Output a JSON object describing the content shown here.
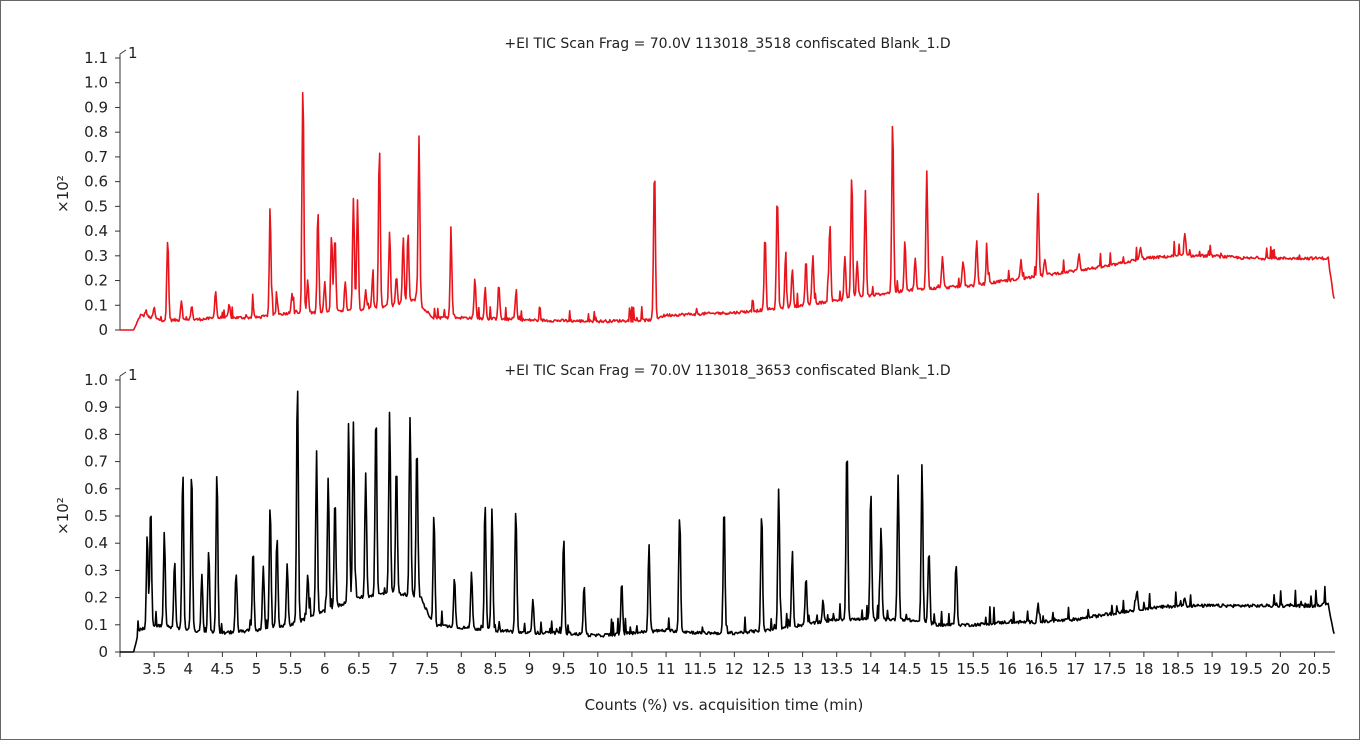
{
  "chart_data": [
    {
      "type": "line",
      "title": "+EI TIC Scan Frag = 70.0V 113018_3518 confiscated Blank_1.D",
      "ylabel": "×10²",
      "xlabel": "",
      "yaxis_top_label": "1",
      "ylim": [
        0,
        1.1
      ],
      "yticks": [
        "0",
        "0.1",
        "0.2",
        "0.3",
        "0.4",
        "0.5",
        "0.6",
        "0.7",
        "0.8",
        "0.9",
        "1.0",
        "1.1"
      ],
      "xlim": [
        3.0,
        20.8
      ],
      "color": "#e8141c",
      "baseline": [
        [
          3.0,
          0
        ],
        [
          3.2,
          0
        ],
        [
          3.3,
          0.06
        ],
        [
          3.6,
          0.04
        ],
        [
          4.0,
          0.04
        ],
        [
          4.5,
          0.05
        ],
        [
          5.0,
          0.05
        ],
        [
          5.5,
          0.07
        ],
        [
          6.0,
          0.07
        ],
        [
          6.5,
          0.08
        ],
        [
          7.0,
          0.1
        ],
        [
          7.3,
          0.12
        ],
        [
          7.6,
          0.05
        ],
        [
          8.0,
          0.05
        ],
        [
          9.0,
          0.04
        ],
        [
          10.0,
          0.035
        ],
        [
          10.75,
          0.04
        ],
        [
          11.0,
          0.06
        ],
        [
          12.0,
          0.07
        ],
        [
          12.4,
          0.08
        ],
        [
          13.0,
          0.1
        ],
        [
          13.5,
          0.12
        ],
        [
          14.0,
          0.14
        ],
        [
          14.5,
          0.16
        ],
        [
          15.0,
          0.17
        ],
        [
          15.5,
          0.18
        ],
        [
          16.0,
          0.2
        ],
        [
          16.5,
          0.22
        ],
        [
          17.0,
          0.24
        ],
        [
          17.5,
          0.26
        ],
        [
          18.0,
          0.29
        ],
        [
          18.5,
          0.3
        ],
        [
          19.0,
          0.3
        ],
        [
          19.5,
          0.29
        ],
        [
          20.0,
          0.29
        ],
        [
          20.5,
          0.29
        ],
        [
          20.7,
          0.29
        ],
        [
          20.78,
          0.13
        ]
      ],
      "peaks": [
        [
          3.38,
          0.08
        ],
        [
          3.5,
          0.09
        ],
        [
          3.7,
          0.37
        ],
        [
          3.9,
          0.12
        ],
        [
          4.05,
          0.1
        ],
        [
          4.4,
          0.16
        ],
        [
          4.6,
          0.1
        ],
        [
          4.95,
          0.09
        ],
        [
          5.2,
          0.47
        ],
        [
          5.3,
          0.12
        ],
        [
          5.52,
          0.15
        ],
        [
          5.68,
          1.0
        ],
        [
          5.75,
          0.2
        ],
        [
          5.9,
          0.49
        ],
        [
          6.0,
          0.2
        ],
        [
          6.1,
          0.39
        ],
        [
          6.15,
          0.39
        ],
        [
          6.3,
          0.2
        ],
        [
          6.42,
          0.53
        ],
        [
          6.48,
          0.52
        ],
        [
          6.6,
          0.16
        ],
        [
          6.7,
          0.2
        ],
        [
          6.8,
          0.74
        ],
        [
          6.95,
          0.4
        ],
        [
          7.05,
          0.22
        ],
        [
          7.15,
          0.38
        ],
        [
          7.22,
          0.4
        ],
        [
          7.38,
          0.78
        ],
        [
          7.85,
          0.38
        ],
        [
          8.2,
          0.21
        ],
        [
          8.35,
          0.17
        ],
        [
          8.55,
          0.19
        ],
        [
          8.8,
          0.14
        ],
        [
          10.83,
          0.66
        ],
        [
          12.45,
          0.38
        ],
        [
          12.63,
          0.55
        ],
        [
          12.75,
          0.28
        ],
        [
          12.85,
          0.25
        ],
        [
          13.05,
          0.28
        ],
        [
          13.15,
          0.3
        ],
        [
          13.4,
          0.43
        ],
        [
          13.62,
          0.3
        ],
        [
          13.72,
          0.63
        ],
        [
          13.8,
          0.28
        ],
        [
          13.92,
          0.56
        ],
        [
          14.32,
          0.86
        ],
        [
          14.5,
          0.36
        ],
        [
          14.65,
          0.29
        ],
        [
          14.82,
          0.64
        ],
        [
          15.05,
          0.3
        ],
        [
          15.35,
          0.28
        ],
        [
          15.55,
          0.36
        ],
        [
          15.7,
          0.3
        ],
        [
          16.2,
          0.28
        ],
        [
          16.45,
          0.55
        ],
        [
          16.55,
          0.29
        ],
        [
          17.05,
          0.31
        ],
        [
          17.95,
          0.33
        ],
        [
          18.6,
          0.39
        ]
      ]
    },
    {
      "type": "line",
      "title": "+EI TIC Scan Frag = 70.0V 113018_3653 confiscated Blank_1.D",
      "ylabel": "×10²",
      "xlabel": "Counts (%) vs. acquisition time (min)",
      "yaxis_top_label": "1",
      "ylim": [
        0,
        1.0
      ],
      "yticks": [
        "0",
        "0.1",
        "0.2",
        "0.3",
        "0.4",
        "0.5",
        "0.6",
        "0.7",
        "0.8",
        "0.9",
        "1.0"
      ],
      "xlim": [
        3.0,
        20.8
      ],
      "xticks": [
        "3.5",
        "4",
        "4.5",
        "5",
        "5.5",
        "6",
        "6.5",
        "7",
        "7.5",
        "8",
        "8.5",
        "9",
        "9.5",
        "10",
        "10.5",
        "11",
        "11.5",
        "12",
        "12.5",
        "13",
        "13.5",
        "14",
        "14.5",
        "15",
        "15.5",
        "16",
        "16.5",
        "17",
        "17.5",
        "18",
        "18.5",
        "19",
        "19.5",
        "20",
        "20.5"
      ],
      "color": "#000000",
      "baseline": [
        [
          3.0,
          0
        ],
        [
          3.2,
          0
        ],
        [
          3.28,
          0.08
        ],
        [
          3.5,
          0.1
        ],
        [
          4.0,
          0.08
        ],
        [
          4.5,
          0.07
        ],
        [
          5.0,
          0.08
        ],
        [
          5.5,
          0.1
        ],
        [
          6.0,
          0.15
        ],
        [
          6.5,
          0.2
        ],
        [
          7.0,
          0.22
        ],
        [
          7.4,
          0.2
        ],
        [
          7.6,
          0.1
        ],
        [
          8.0,
          0.09
        ],
        [
          8.5,
          0.08
        ],
        [
          9.0,
          0.07
        ],
        [
          9.5,
          0.07
        ],
        [
          10.0,
          0.06
        ],
        [
          10.5,
          0.07
        ],
        [
          11.0,
          0.08
        ],
        [
          11.5,
          0.07
        ],
        [
          12.0,
          0.07
        ],
        [
          12.5,
          0.08
        ],
        [
          13.0,
          0.1
        ],
        [
          13.5,
          0.12
        ],
        [
          14.0,
          0.12
        ],
        [
          14.5,
          0.12
        ],
        [
          15.0,
          0.1
        ],
        [
          15.5,
          0.1
        ],
        [
          16.0,
          0.11
        ],
        [
          16.5,
          0.11
        ],
        [
          17.0,
          0.12
        ],
        [
          17.5,
          0.14
        ],
        [
          18.0,
          0.16
        ],
        [
          18.5,
          0.17
        ],
        [
          19.0,
          0.17
        ],
        [
          19.5,
          0.17
        ],
        [
          20.0,
          0.17
        ],
        [
          20.5,
          0.17
        ],
        [
          20.7,
          0.18
        ],
        [
          20.78,
          0.07
        ]
      ],
      "peaks": [
        [
          3.4,
          0.44
        ],
        [
          3.45,
          0.54
        ],
        [
          3.65,
          0.44
        ],
        [
          3.8,
          0.34
        ],
        [
          3.92,
          0.67
        ],
        [
          4.05,
          0.66
        ],
        [
          4.2,
          0.29
        ],
        [
          4.3,
          0.38
        ],
        [
          4.42,
          0.67
        ],
        [
          4.7,
          0.29
        ],
        [
          4.95,
          0.38
        ],
        [
          5.1,
          0.31
        ],
        [
          5.2,
          0.55
        ],
        [
          5.3,
          0.43
        ],
        [
          5.45,
          0.33
        ],
        [
          5.6,
          1.0
        ],
        [
          5.75,
          0.29
        ],
        [
          5.88,
          0.74
        ],
        [
          6.05,
          0.64
        ],
        [
          6.15,
          0.57
        ],
        [
          6.35,
          0.85
        ],
        [
          6.42,
          0.85
        ],
        [
          6.6,
          0.66
        ],
        [
          6.75,
          0.89
        ],
        [
          6.95,
          0.89
        ],
        [
          7.05,
          0.7
        ],
        [
          7.25,
          0.87
        ],
        [
          7.35,
          0.77
        ],
        [
          7.6,
          0.51
        ],
        [
          7.9,
          0.28
        ],
        [
          8.15,
          0.3
        ],
        [
          8.35,
          0.54
        ],
        [
          8.45,
          0.53
        ],
        [
          8.8,
          0.53
        ],
        [
          9.05,
          0.2
        ],
        [
          9.5,
          0.43
        ],
        [
          9.8,
          0.25
        ],
        [
          10.35,
          0.26
        ],
        [
          10.75,
          0.37
        ],
        [
          11.2,
          0.51
        ],
        [
          11.85,
          0.54
        ],
        [
          12.4,
          0.51
        ],
        [
          12.65,
          0.6
        ],
        [
          12.85,
          0.37
        ],
        [
          13.05,
          0.28
        ],
        [
          13.3,
          0.19
        ],
        [
          13.65,
          0.77
        ],
        [
          14.0,
          0.6
        ],
        [
          14.15,
          0.46
        ],
        [
          14.4,
          0.65
        ],
        [
          14.75,
          0.69
        ],
        [
          14.85,
          0.38
        ],
        [
          15.25,
          0.32
        ],
        [
          16.45,
          0.18
        ],
        [
          17.9,
          0.22
        ],
        [
          18.6,
          0.2
        ]
      ]
    }
  ]
}
